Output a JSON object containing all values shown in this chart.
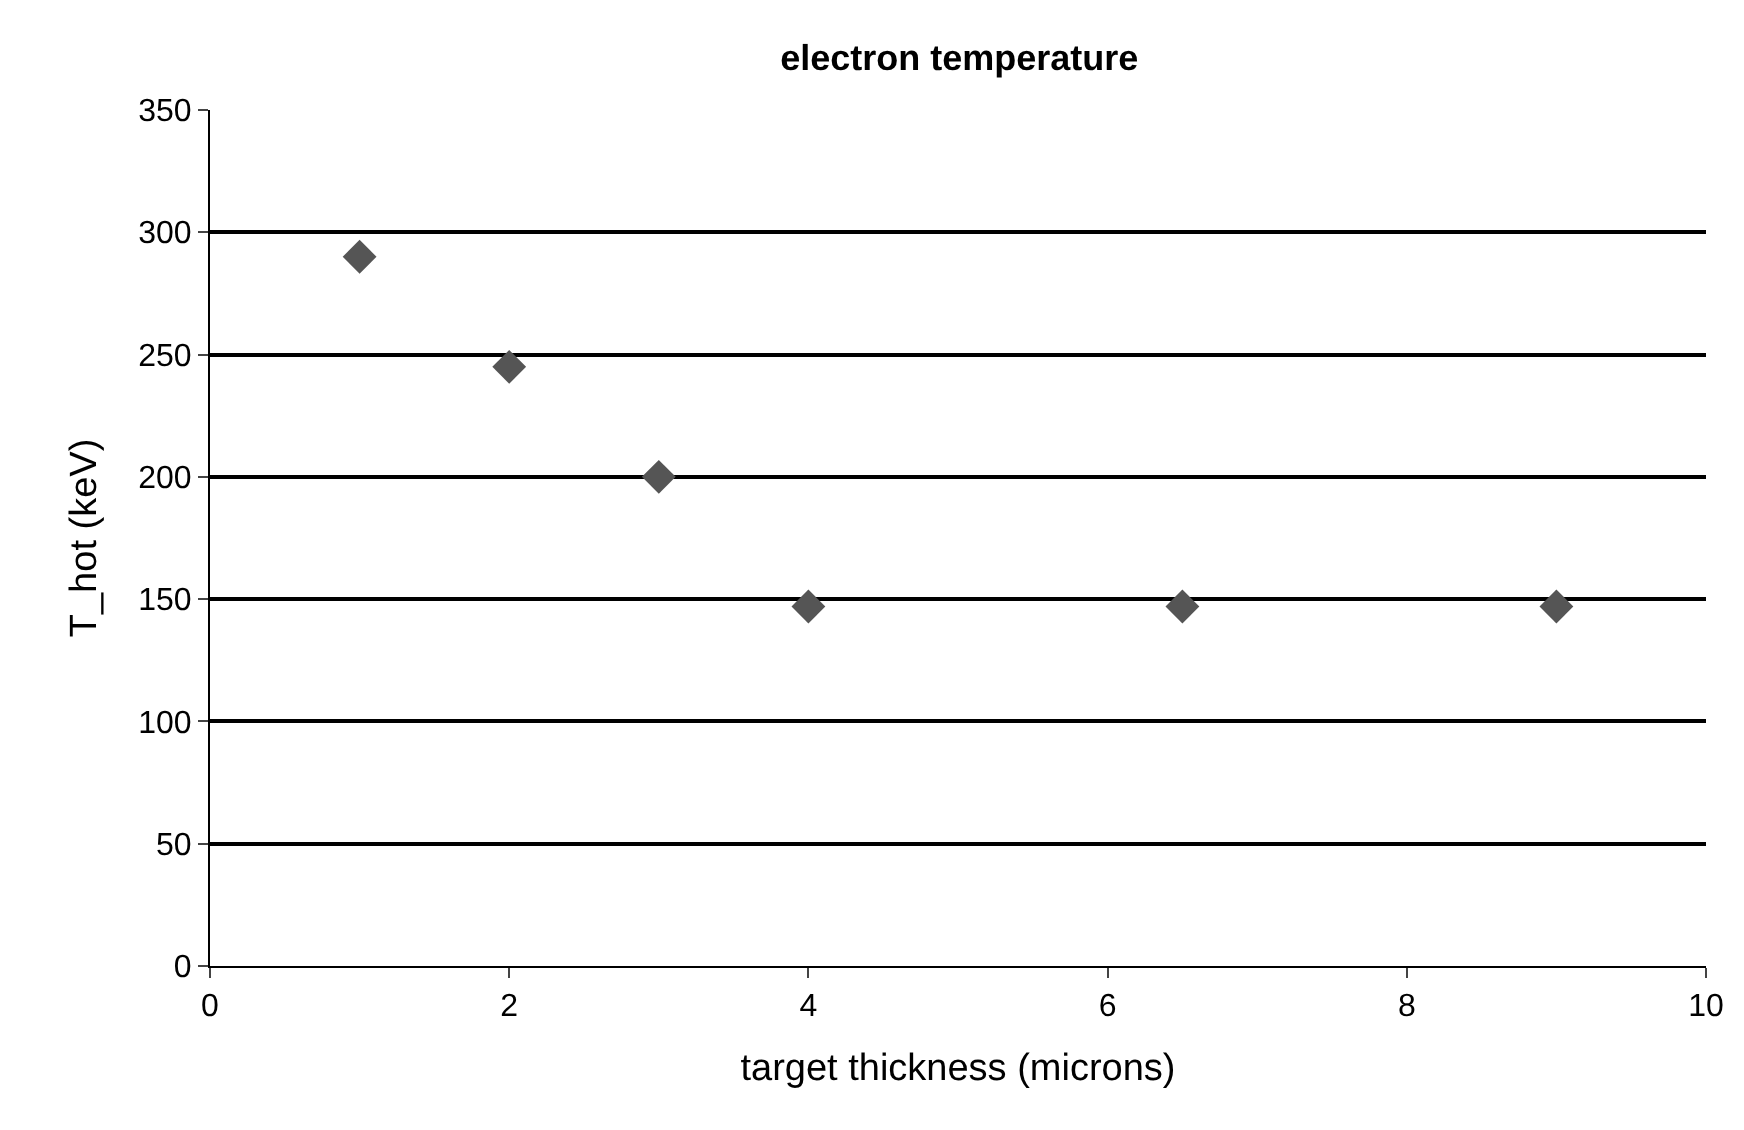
{
  "chart_data": {
    "type": "scatter",
    "title": "electron temperature",
    "xlabel": "target thickness (microns)",
    "ylabel": "T_hot (keV)",
    "x": [
      1,
      2,
      3,
      4,
      6.5,
      9
    ],
    "series": [
      {
        "color": "#555555",
        "values": [
          290,
          245,
          200,
          147,
          147,
          147
        ]
      }
    ],
    "xlim": [
      0,
      10
    ],
    "xticks": [
      0,
      2,
      4,
      6,
      8,
      10
    ],
    "ylim": [
      0,
      350
    ],
    "yticks": [
      0,
      50,
      100,
      150,
      200,
      250,
      300,
      350
    ],
    "grid": "y",
    "marker": "diamond",
    "legend": false
  }
}
